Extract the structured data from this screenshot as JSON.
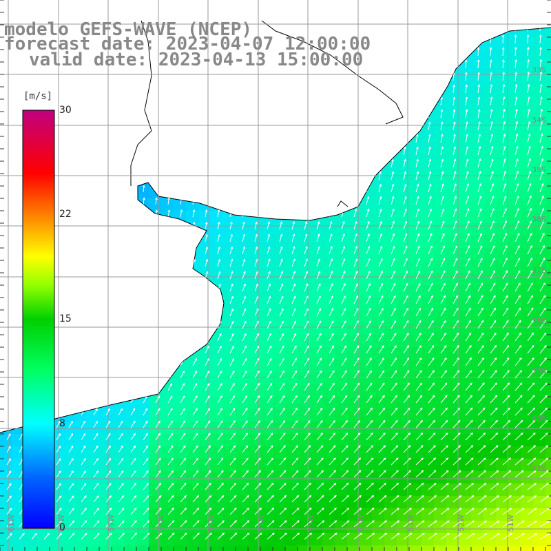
{
  "title": {
    "line1": "modelo GEFS-WAVE (NCEP)",
    "line2": "forecast date: 2023-04-07 12:00:00",
    "line3": "valid date: 2023-04-13 15:00:00"
  },
  "colorbar": {
    "unit": "[m/s]",
    "min": 0,
    "max": 30,
    "ticks": [
      "30",
      "22",
      "15",
      "8",
      "0"
    ],
    "tick_values": [
      30,
      22.5,
      15,
      7.5,
      0
    ],
    "colors": [
      "#0000ff",
      "#0060ff",
      "#00b0ff",
      "#00ffff",
      "#00ff80",
      "#00e000",
      "#80ff00",
      "#ffff00",
      "#ffa000",
      "#ff5000",
      "#ff0000",
      "#e0007f",
      "#c00080"
    ]
  },
  "map": {
    "lon_labels": [
      "61W",
      "60W",
      "59W",
      "58W",
      "57W",
      "56W",
      "55W",
      "54W",
      "53W",
      "52W",
      "51W"
    ],
    "lat_labels": [
      "33S",
      "34S",
      "35S",
      "36S",
      "37S",
      "38S",
      "39S",
      "40S",
      "41S"
    ],
    "colors": {
      "land": "#ffffff",
      "coast": "#000000",
      "grid": "#999999",
      "arrow": "#ffffff"
    }
  }
}
